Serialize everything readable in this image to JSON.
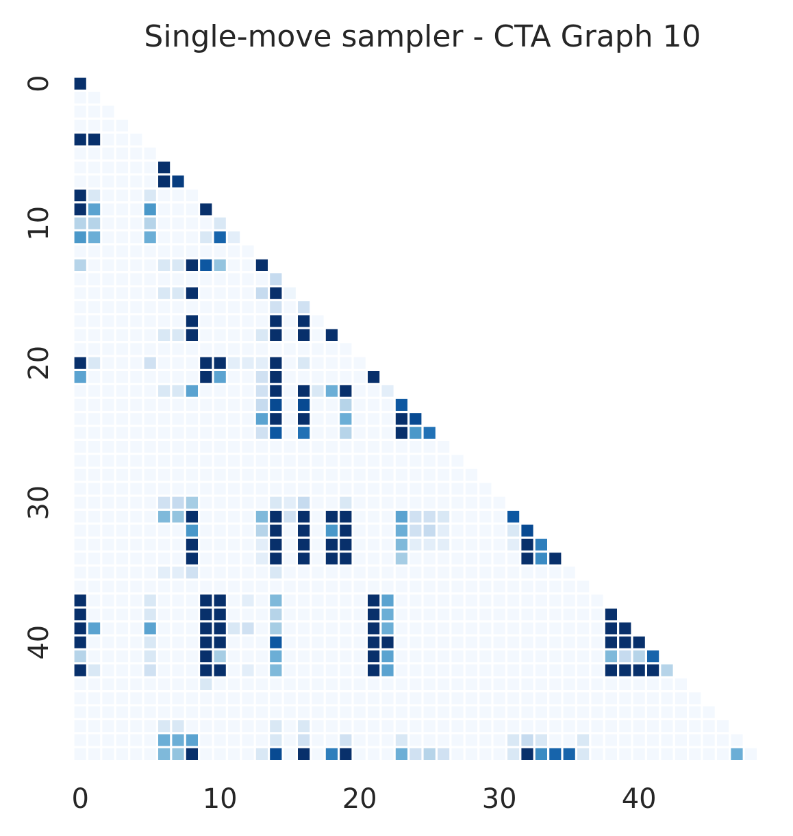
{
  "chart_data": {
    "type": "heatmap",
    "title": "Single-move sampler - CTA Graph 10",
    "xlabel": "",
    "ylabel": "",
    "n": 49,
    "mask": "upper-triangle",
    "colormap": "Blues",
    "colorbar": false,
    "x_ticks": [
      0,
      10,
      20,
      30,
      40
    ],
    "y_ticks": [
      0,
      10,
      20,
      30,
      40
    ],
    "value_range": [
      0,
      1
    ],
    "background_value": 0.02,
    "cells": [
      [
        0,
        0,
        1.0
      ],
      [
        4,
        0,
        1.0
      ],
      [
        4,
        1,
        1.0
      ],
      [
        6,
        6,
        1.0
      ],
      [
        7,
        6,
        1.0
      ],
      [
        7,
        7,
        0.95
      ],
      [
        8,
        0,
        1.0
      ],
      [
        8,
        1,
        0.15
      ],
      [
        8,
        5,
        0.15
      ],
      [
        9,
        0,
        1.0
      ],
      [
        9,
        1,
        0.55
      ],
      [
        9,
        5,
        0.6
      ],
      [
        9,
        9,
        1.0
      ],
      [
        10,
        0,
        0.3
      ],
      [
        10,
        1,
        0.3
      ],
      [
        10,
        5,
        0.3
      ],
      [
        10,
        10,
        0.15
      ],
      [
        11,
        0,
        0.6
      ],
      [
        11,
        1,
        0.5
      ],
      [
        11,
        5,
        0.5
      ],
      [
        11,
        9,
        0.15
      ],
      [
        11,
        10,
        0.8
      ],
      [
        11,
        11,
        0.1
      ],
      [
        13,
        0,
        0.3
      ],
      [
        13,
        6,
        0.15
      ],
      [
        13,
        7,
        0.15
      ],
      [
        13,
        8,
        1.0
      ],
      [
        13,
        9,
        0.85
      ],
      [
        13,
        10,
        0.4
      ],
      [
        13,
        13,
        1.0
      ],
      [
        14,
        14,
        0.25
      ],
      [
        15,
        6,
        0.15
      ],
      [
        15,
        7,
        0.15
      ],
      [
        15,
        8,
        1.0
      ],
      [
        15,
        13,
        0.25
      ],
      [
        15,
        14,
        1.0
      ],
      [
        15,
        15,
        0.05
      ],
      [
        16,
        14,
        0.2
      ],
      [
        16,
        16,
        0.2
      ],
      [
        17,
        8,
        1.0
      ],
      [
        17,
        14,
        1.0
      ],
      [
        17,
        16,
        1.0
      ],
      [
        18,
        6,
        0.15
      ],
      [
        18,
        7,
        0.15
      ],
      [
        18,
        8,
        1.0
      ],
      [
        18,
        13,
        0.15
      ],
      [
        18,
        14,
        1.0
      ],
      [
        18,
        16,
        1.0
      ],
      [
        18,
        18,
        1.0
      ],
      [
        20,
        0,
        1.0
      ],
      [
        20,
        1,
        0.15
      ],
      [
        20,
        5,
        0.2
      ],
      [
        20,
        9,
        1.0
      ],
      [
        20,
        10,
        1.0
      ],
      [
        20,
        11,
        0.1
      ],
      [
        20,
        12,
        0.1
      ],
      [
        20,
        13,
        0.1
      ],
      [
        20,
        14,
        1.0
      ],
      [
        20,
        16,
        0.15
      ],
      [
        21,
        0,
        0.55
      ],
      [
        21,
        9,
        1.0
      ],
      [
        21,
        10,
        0.55
      ],
      [
        21,
        13,
        0.2
      ],
      [
        21,
        14,
        1.0
      ],
      [
        21,
        21,
        1.0
      ],
      [
        22,
        6,
        0.15
      ],
      [
        22,
        7,
        0.15
      ],
      [
        22,
        8,
        0.55
      ],
      [
        22,
        13,
        0.2
      ],
      [
        22,
        14,
        1.0
      ],
      [
        22,
        16,
        1.0
      ],
      [
        22,
        17,
        0.15
      ],
      [
        22,
        18,
        0.5
      ],
      [
        22,
        19,
        1.0
      ],
      [
        22,
        22,
        0.1
      ],
      [
        23,
        13,
        0.25
      ],
      [
        23,
        14,
        0.9
      ],
      [
        23,
        16,
        0.9
      ],
      [
        23,
        19,
        0.3
      ],
      [
        23,
        23,
        0.85
      ],
      [
        24,
        13,
        0.55
      ],
      [
        24,
        14,
        1.0
      ],
      [
        24,
        16,
        1.0
      ],
      [
        24,
        19,
        0.5
      ],
      [
        24,
        23,
        1.0
      ],
      [
        24,
        24,
        0.9
      ],
      [
        25,
        13,
        0.2
      ],
      [
        25,
        14,
        0.85
      ],
      [
        25,
        16,
        0.75
      ],
      [
        25,
        19,
        0.3
      ],
      [
        25,
        23,
        1.0
      ],
      [
        25,
        24,
        0.6
      ],
      [
        25,
        25,
        0.75
      ],
      [
        30,
        6,
        0.2
      ],
      [
        30,
        7,
        0.25
      ],
      [
        30,
        8,
        0.35
      ],
      [
        30,
        14,
        0.15
      ],
      [
        30,
        15,
        0.1
      ],
      [
        30,
        16,
        0.25
      ],
      [
        30,
        19,
        0.15
      ],
      [
        31,
        6,
        0.45
      ],
      [
        31,
        7,
        0.4
      ],
      [
        31,
        8,
        1.0
      ],
      [
        31,
        13,
        0.45
      ],
      [
        31,
        14,
        1.0
      ],
      [
        31,
        15,
        0.2
      ],
      [
        31,
        16,
        1.0
      ],
      [
        31,
        18,
        1.0
      ],
      [
        31,
        19,
        1.0
      ],
      [
        31,
        23,
        0.55
      ],
      [
        31,
        24,
        0.2
      ],
      [
        31,
        25,
        0.2
      ],
      [
        31,
        26,
        0.15
      ],
      [
        31,
        31,
        0.85
      ],
      [
        32,
        8,
        0.6
      ],
      [
        32,
        13,
        0.3
      ],
      [
        32,
        14,
        1.0
      ],
      [
        32,
        16,
        1.0
      ],
      [
        32,
        18,
        0.6
      ],
      [
        32,
        19,
        1.0
      ],
      [
        32,
        23,
        0.5
      ],
      [
        32,
        24,
        0.2
      ],
      [
        32,
        25,
        0.25
      ],
      [
        32,
        26,
        0.1
      ],
      [
        32,
        31,
        0.15
      ],
      [
        32,
        32,
        0.9
      ],
      [
        33,
        8,
        1.0
      ],
      [
        33,
        13,
        0.1
      ],
      [
        33,
        14,
        1.0
      ],
      [
        33,
        16,
        1.0
      ],
      [
        33,
        18,
        1.0
      ],
      [
        33,
        19,
        1.0
      ],
      [
        33,
        23,
        0.45
      ],
      [
        33,
        24,
        0.1
      ],
      [
        33,
        25,
        0.1
      ],
      [
        33,
        26,
        0.1
      ],
      [
        33,
        31,
        0.1
      ],
      [
        33,
        32,
        1.0
      ],
      [
        33,
        33,
        0.7
      ],
      [
        34,
        8,
        1.0
      ],
      [
        34,
        13,
        0.1
      ],
      [
        34,
        14,
        1.0
      ],
      [
        34,
        16,
        1.0
      ],
      [
        34,
        18,
        1.0
      ],
      [
        34,
        19,
        1.0
      ],
      [
        34,
        23,
        0.35
      ],
      [
        34,
        32,
        1.0
      ],
      [
        34,
        33,
        0.65
      ],
      [
        34,
        34,
        1.0
      ],
      [
        35,
        6,
        0.1
      ],
      [
        35,
        7,
        0.1
      ],
      [
        35,
        8,
        0.2
      ],
      [
        35,
        14,
        0.15
      ],
      [
        37,
        0,
        1.0
      ],
      [
        37,
        5,
        0.15
      ],
      [
        37,
        9,
        1.0
      ],
      [
        37,
        10,
        1.0
      ],
      [
        37,
        12,
        0.1
      ],
      [
        37,
        14,
        0.45
      ],
      [
        37,
        21,
        1.0
      ],
      [
        37,
        22,
        0.55
      ],
      [
        38,
        0,
        1.0
      ],
      [
        38,
        5,
        0.15
      ],
      [
        38,
        9,
        1.0
      ],
      [
        38,
        10,
        1.0
      ],
      [
        38,
        14,
        0.3
      ],
      [
        38,
        21,
        1.0
      ],
      [
        38,
        22,
        0.5
      ],
      [
        38,
        38,
        1.0
      ],
      [
        39,
        0,
        1.0
      ],
      [
        39,
        1,
        0.55
      ],
      [
        39,
        5,
        0.55
      ],
      [
        39,
        9,
        1.0
      ],
      [
        39,
        10,
        1.0
      ],
      [
        39,
        11,
        0.15
      ],
      [
        39,
        12,
        0.2
      ],
      [
        39,
        14,
        0.35
      ],
      [
        39,
        21,
        1.0
      ],
      [
        39,
        22,
        0.5
      ],
      [
        39,
        38,
        1.0
      ],
      [
        39,
        39,
        1.0
      ],
      [
        40,
        0,
        1.0
      ],
      [
        40,
        5,
        0.15
      ],
      [
        40,
        9,
        1.0
      ],
      [
        40,
        10,
        1.0
      ],
      [
        40,
        14,
        0.85
      ],
      [
        40,
        21,
        1.0
      ],
      [
        40,
        22,
        1.0
      ],
      [
        40,
        38,
        1.0
      ],
      [
        40,
        39,
        1.0
      ],
      [
        40,
        40,
        1.0
      ],
      [
        41,
        0,
        0.3
      ],
      [
        41,
        5,
        0.15
      ],
      [
        41,
        9,
        1.0
      ],
      [
        41,
        10,
        0.35
      ],
      [
        41,
        14,
        0.5
      ],
      [
        41,
        21,
        1.0
      ],
      [
        41,
        22,
        0.55
      ],
      [
        41,
        38,
        0.45
      ],
      [
        41,
        39,
        0.25
      ],
      [
        41,
        40,
        0.3
      ],
      [
        41,
        41,
        0.8
      ],
      [
        42,
        0,
        1.0
      ],
      [
        42,
        1,
        0.15
      ],
      [
        42,
        5,
        0.2
      ],
      [
        42,
        9,
        1.0
      ],
      [
        42,
        10,
        1.0
      ],
      [
        42,
        12,
        0.1
      ],
      [
        42,
        14,
        0.45
      ],
      [
        42,
        21,
        1.0
      ],
      [
        42,
        22,
        0.55
      ],
      [
        42,
        38,
        1.0
      ],
      [
        42,
        39,
        1.0
      ],
      [
        42,
        40,
        1.0
      ],
      [
        42,
        41,
        1.0
      ],
      [
        42,
        42,
        0.3
      ],
      [
        43,
        9,
        0.15
      ],
      [
        46,
        6,
        0.15
      ],
      [
        46,
        7,
        0.15
      ],
      [
        46,
        14,
        0.15
      ],
      [
        46,
        16,
        0.15
      ],
      [
        47,
        6,
        0.5
      ],
      [
        47,
        7,
        0.5
      ],
      [
        47,
        8,
        0.55
      ],
      [
        47,
        14,
        0.15
      ],
      [
        47,
        16,
        0.2
      ],
      [
        47,
        19,
        0.2
      ],
      [
        47,
        23,
        0.15
      ],
      [
        47,
        31,
        0.15
      ],
      [
        47,
        32,
        0.25
      ],
      [
        47,
        33,
        0.15
      ],
      [
        47,
        36,
        0.15
      ],
      [
        48,
        6,
        0.45
      ],
      [
        48,
        7,
        0.4
      ],
      [
        48,
        8,
        1.0
      ],
      [
        48,
        13,
        0.15
      ],
      [
        48,
        14,
        0.9
      ],
      [
        48,
        16,
        1.0
      ],
      [
        48,
        18,
        0.7
      ],
      [
        48,
        19,
        1.0
      ],
      [
        48,
        23,
        0.5
      ],
      [
        48,
        24,
        0.2
      ],
      [
        48,
        25,
        0.3
      ],
      [
        48,
        26,
        0.2
      ],
      [
        48,
        31,
        0.15
      ],
      [
        48,
        32,
        1.0
      ],
      [
        48,
        33,
        0.65
      ],
      [
        48,
        34,
        0.8
      ],
      [
        48,
        35,
        0.8
      ],
      [
        48,
        36,
        0.15
      ],
      [
        48,
        47,
        0.5
      ]
    ]
  }
}
